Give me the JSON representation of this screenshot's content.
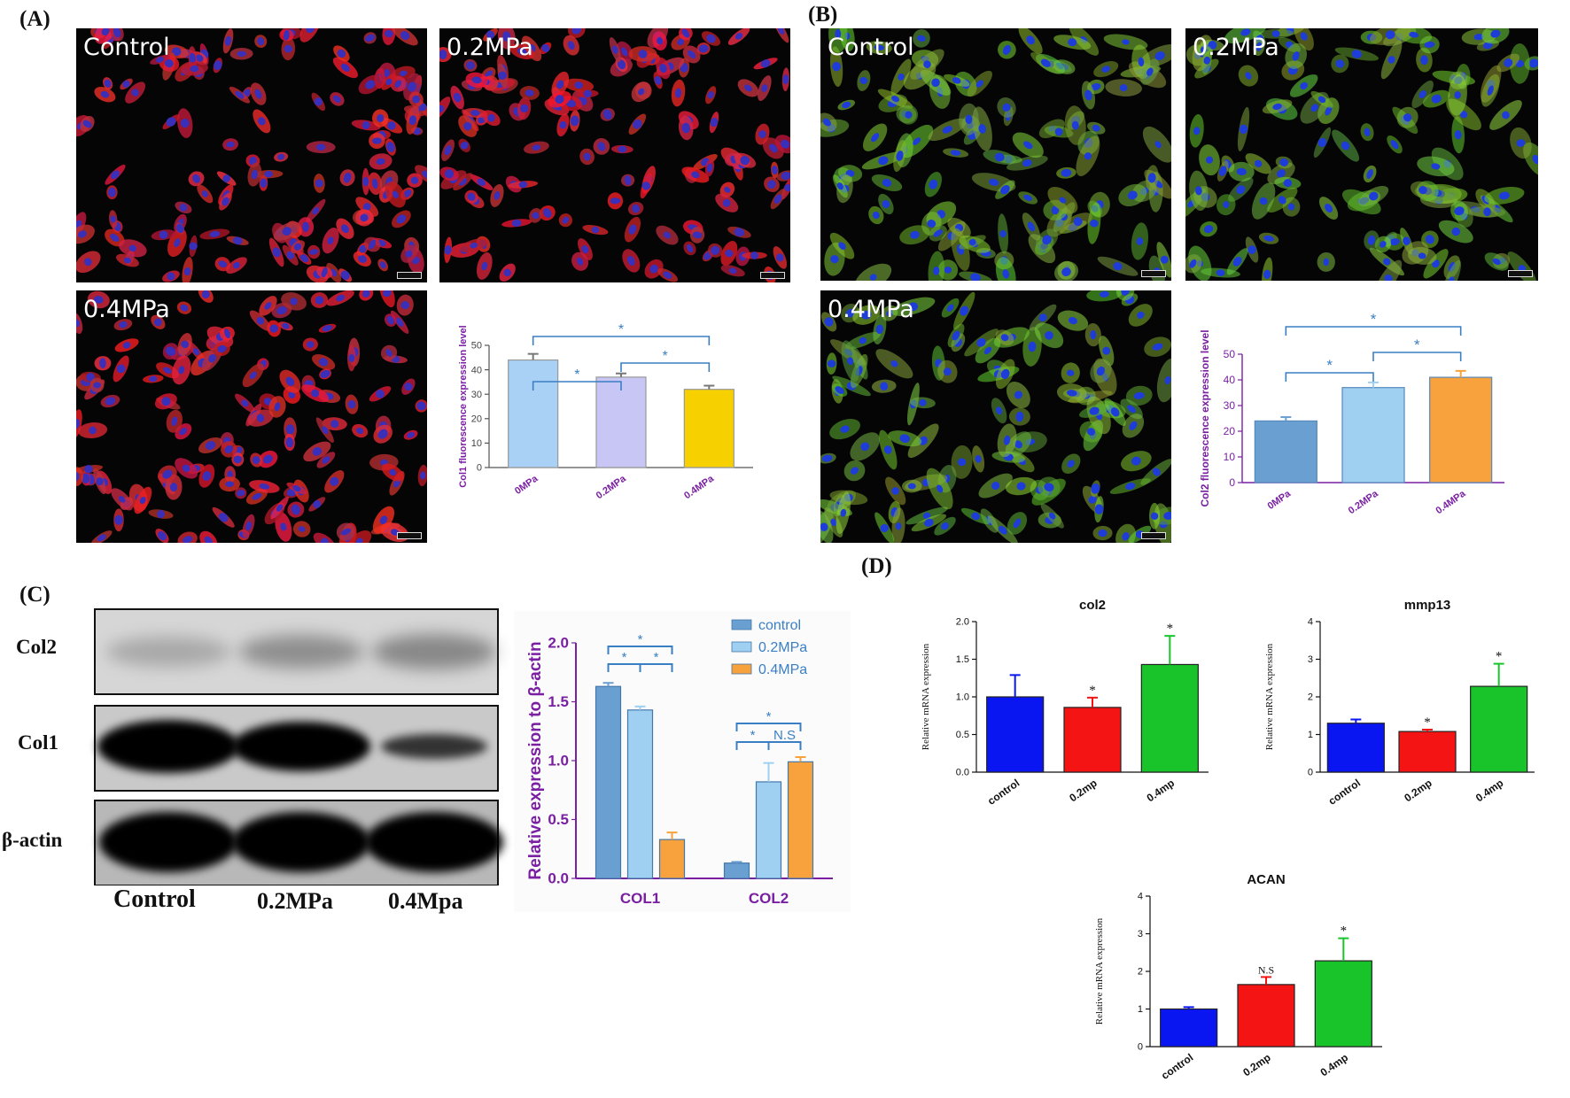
{
  "panels": {
    "A": {
      "label": "(A)",
      "images": [
        {
          "label": "Control",
          "stain": "red"
        },
        {
          "label": "0.2MPa",
          "stain": "red"
        },
        {
          "label": "0.4MPa",
          "stain": "red"
        }
      ]
    },
    "B": {
      "label": "(B)",
      "images": [
        {
          "label": "Control",
          "stain": "green"
        },
        {
          "label": "0.2MPa",
          "stain": "green"
        },
        {
          "label": "0.4MPa",
          "stain": "green"
        }
      ]
    },
    "C": {
      "label": "(C)",
      "blot_rows": [
        "Col2",
        "Col1",
        "β-actin"
      ],
      "blot_lanes": [
        "Control",
        "0.2MPa",
        "0.4Mpa"
      ]
    },
    "D": {
      "label": "(D)"
    }
  },
  "colors": {
    "lightblue": "#a9d0f5",
    "lavender": "#c8c6f5",
    "yellow": "#f7d000",
    "steel": "#6a9fd2",
    "skyblue": "#9fd0f2",
    "orange": "#f7a23c",
    "blue": "#0a16f2",
    "red": "#f41414",
    "green": "#18c42a",
    "purple": "#7a1fa2",
    "sigblue": "#3a7fc4"
  },
  "chart_data": [
    {
      "id": "A-chart",
      "type": "bar",
      "title": "",
      "xlabel": "",
      "ylabel": "Col1 fluorescence expression level",
      "categories": [
        "0MPa",
        "0.2MPa",
        "0.4MPa"
      ],
      "values": [
        44,
        37,
        32
      ],
      "errors": [
        2.5,
        1.5,
        1.5
      ],
      "ylim": [
        0,
        50
      ],
      "yticks": [
        "0",
        "10",
        "20",
        "30",
        "40",
        "50"
      ],
      "bar_colors": [
        "#a9d0f5",
        "#c8c6f5",
        "#f7d000"
      ],
      "significance": [
        "*",
        "*",
        "*"
      ]
    },
    {
      "id": "B-chart",
      "type": "bar",
      "title": "",
      "xlabel": "",
      "ylabel": "Col2 fluorescence expression level",
      "categories": [
        "0MPa",
        "0.2MPa",
        "0.4MPa"
      ],
      "values": [
        24,
        37,
        41
      ],
      "errors": [
        1.5,
        2,
        2.5
      ],
      "ylim": [
        0,
        50
      ],
      "yticks": [
        "0",
        "10",
        "20",
        "30",
        "40",
        "50"
      ],
      "bar_colors": [
        "#6a9fd2",
        "#9fd0f2",
        "#f7a23c"
      ],
      "significance": [
        "*",
        "*",
        "*"
      ]
    },
    {
      "id": "C-chart",
      "type": "bar",
      "title": "",
      "xlabel": "",
      "ylabel": "Relative expression to β-actin",
      "categories": [
        "COL1",
        "COL2"
      ],
      "series": [
        {
          "name": "control",
          "values": [
            1.63,
            0.13
          ],
          "errors": [
            0.03,
            0.01
          ]
        },
        {
          "name": "0.2MPa",
          "values": [
            1.43,
            0.82
          ],
          "errors": [
            0.03,
            0.16
          ]
        },
        {
          "name": "0.4MPa",
          "values": [
            0.33,
            0.99
          ],
          "errors": [
            0.06,
            0.04
          ]
        }
      ],
      "ylim": [
        0,
        2.0
      ],
      "yticks": [
        "0.0",
        "0.5",
        "1.0",
        "1.5",
        "2.0"
      ],
      "significance": [
        "*",
        "*",
        "*",
        "*",
        "*",
        "N.S"
      ]
    },
    {
      "id": "D-col2",
      "type": "bar",
      "title": "col2",
      "xlabel": "",
      "ylabel": "Relative mRNA expression",
      "categories": [
        "control",
        "0.2mp",
        "0.4mp"
      ],
      "values": [
        1.0,
        0.86,
        1.43
      ],
      "errors": [
        0.29,
        0.13,
        0.38
      ],
      "ylim": [
        0,
        2.0
      ],
      "yticks": [
        "0.0",
        "0.5",
        "1.0",
        "1.5",
        "2.0"
      ],
      "bar_colors": [
        "#0a16f2",
        "#f41414",
        "#18c42a"
      ],
      "significance": [
        "",
        "*",
        "*"
      ]
    },
    {
      "id": "D-mmp13",
      "type": "bar",
      "title": "mmp13",
      "xlabel": "",
      "ylabel": "Relative mRNA expression",
      "categories": [
        "control",
        "0.2mp",
        "0.4mp"
      ],
      "values": [
        1.3,
        1.08,
        2.28
      ],
      "errors": [
        0.1,
        0.05,
        0.6
      ],
      "ylim": [
        0,
        4
      ],
      "yticks": [
        "0",
        "1",
        "2",
        "3",
        "4"
      ],
      "bar_colors": [
        "#0a16f2",
        "#f41414",
        "#18c42a"
      ],
      "significance": [
        "",
        "*",
        "*"
      ]
    },
    {
      "id": "D-acan",
      "type": "bar",
      "title": "ACAN",
      "xlabel": "",
      "ylabel": "Relative mRNA expression",
      "categories": [
        "control",
        "0.2mp",
        "0.4mp"
      ],
      "values": [
        1.0,
        1.65,
        2.28
      ],
      "errors": [
        0.05,
        0.2,
        0.6
      ],
      "ylim": [
        0,
        4
      ],
      "yticks": [
        "0",
        "1",
        "2",
        "3",
        "4"
      ],
      "bar_colors": [
        "#0a16f2",
        "#f41414",
        "#18c42a"
      ],
      "significance": [
        "",
        "N.S",
        "*"
      ]
    }
  ]
}
